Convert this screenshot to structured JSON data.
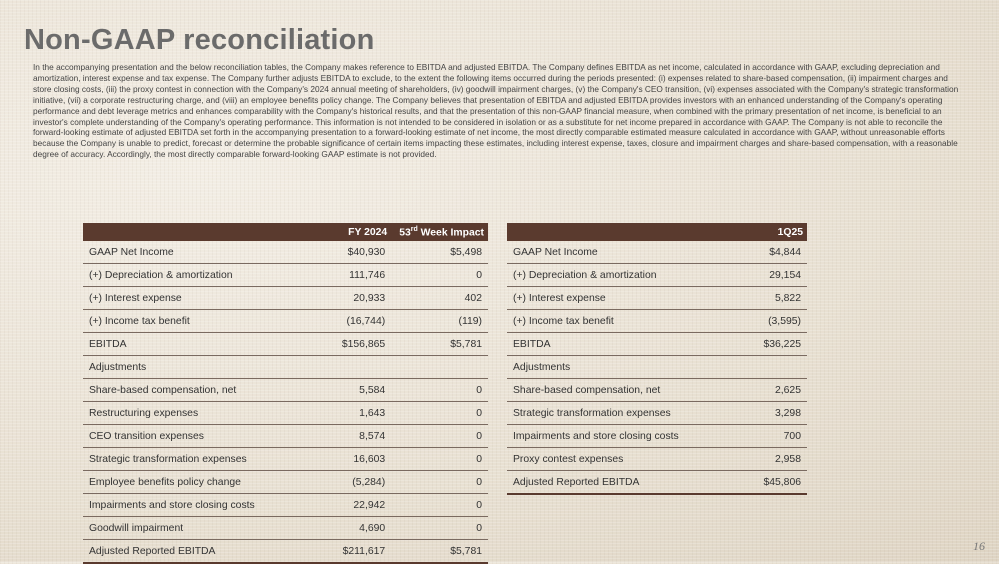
{
  "title": "Non-GAAP reconciliation",
  "intro": "In the accompanying presentation and the below reconciliation tables, the Company makes reference to EBITDA and adjusted EBITDA. The Company defines EBITDA as net income, calculated in accordance with GAAP, excluding depreciation and amortization, interest expense and tax expense. The Company further adjusts EBITDA to exclude, to the extent the following items occurred during the periods presented: (i) expenses related to share-based compensation, (ii) impairment charges and store closing costs, (iii) the proxy contest in connection with the Company's 2024 annual meeting of shareholders, (iv) goodwill impairment charges, (v) the Company's CEO transition, (vi) expenses associated with the Company's strategic transformation initiative, (vii) a corporate restructuring charge, and (viii) an employee benefits policy change. The Company believes that presentation of EBITDA and adjusted EBITDA provides investors with an enhanced understanding of the Company's operating performance and debt leverage metrics and enhances comparability with the Company's historical results, and that the presentation of this non-GAAP financial measure, when combined with the primary presentation of net income, is beneficial to an investor's complete understanding of the Company's operating performance. This information is not intended to be considered in isolation or as a substitute for net income prepared in accordance with GAAP. The Company is not able to reconcile the forward-looking estimate of adjusted EBITDA set forth in the accompanying presentation to a forward-looking estimate of net income, the most directly comparable estimated measure calculated in accordance with GAAP, without unreasonable efforts because the Company is unable to predict, forecast or determine the probable significance of certain items impacting these estimates, including interest expense, taxes, closure and impairment charges and share-based compensation, with a reasonable degree of accuracy. Accordingly, the most directly comparable forward-looking GAAP estimate is not provided.",
  "table1": {
    "headers": {
      "col1": "FY 2024",
      "col2_base": "53",
      "col2_sup": "rd",
      "col2_rest": " Week Impact"
    },
    "rows": [
      {
        "label": "GAAP Net Income",
        "v1": "$40,930",
        "v2": "$5,498",
        "indent": 0
      },
      {
        "label": "(+) Depreciation & amortization",
        "v1": "111,746",
        "v2": "0",
        "indent": 1
      },
      {
        "label": "(+) Interest expense",
        "v1": "20,933",
        "v2": "402",
        "indent": 1
      },
      {
        "label": "(+) Income tax benefit",
        "v1": "(16,744)",
        "v2": "(119)",
        "indent": 1
      },
      {
        "label": "EBITDA",
        "v1": "$156,865",
        "v2": "$5,781",
        "indent": 0
      },
      {
        "label": "Adjustments",
        "v1": "",
        "v2": "",
        "indent": 0
      },
      {
        "label": "Share-based compensation, net",
        "v1": "5,584",
        "v2": "0",
        "indent": 1
      },
      {
        "label": "Restructuring expenses",
        "v1": "1,643",
        "v2": "0",
        "indent": 1
      },
      {
        "label": "CEO transition expenses",
        "v1": "8,574",
        "v2": "0",
        "indent": 1
      },
      {
        "label": "Strategic transformation expenses",
        "v1": "16,603",
        "v2": "0",
        "indent": 1
      },
      {
        "label": "Employee benefits policy change",
        "v1": "(5,284)",
        "v2": "0",
        "indent": 1
      },
      {
        "label": "Impairments and store closing costs",
        "v1": "22,942",
        "v2": "0",
        "indent": 1
      },
      {
        "label": "Goodwill impairment",
        "v1": "4,690",
        "v2": "0",
        "indent": 1
      },
      {
        "label": "Adjusted Reported EBITDA",
        "v1": "$211,617",
        "v2": "$5,781",
        "indent": 0
      }
    ]
  },
  "table2": {
    "headers": {
      "col1": "1Q25"
    },
    "rows": [
      {
        "label": "GAAP Net Income",
        "v1": "$4,844",
        "indent": 0
      },
      {
        "label": "(+) Depreciation & amortization",
        "v1": "29,154",
        "indent": 1
      },
      {
        "label": "(+) Interest expense",
        "v1": "5,822",
        "indent": 1
      },
      {
        "label": "(+) Income tax benefit",
        "v1": "(3,595)",
        "indent": 1
      },
      {
        "label": "EBITDA",
        "v1": "$36,225",
        "indent": 0
      },
      {
        "label": "Adjustments",
        "v1": "",
        "indent": 0
      },
      {
        "label": "Share-based compensation, net",
        "v1": "2,625",
        "indent": 1
      },
      {
        "label": "Strategic transformation expenses",
        "v1": "3,298",
        "indent": 1
      },
      {
        "label": "Impairments and store closing costs",
        "v1": "700",
        "indent": 1
      },
      {
        "label": "Proxy contest expenses",
        "v1": "2,958",
        "indent": 1
      },
      {
        "label": "Adjusted Reported EBITDA",
        "v1": "$45,806",
        "indent": 0
      }
    ]
  },
  "page_number": "16",
  "colors": {
    "header_bg": "#5a3a2e",
    "title": "#6b6b6b"
  }
}
